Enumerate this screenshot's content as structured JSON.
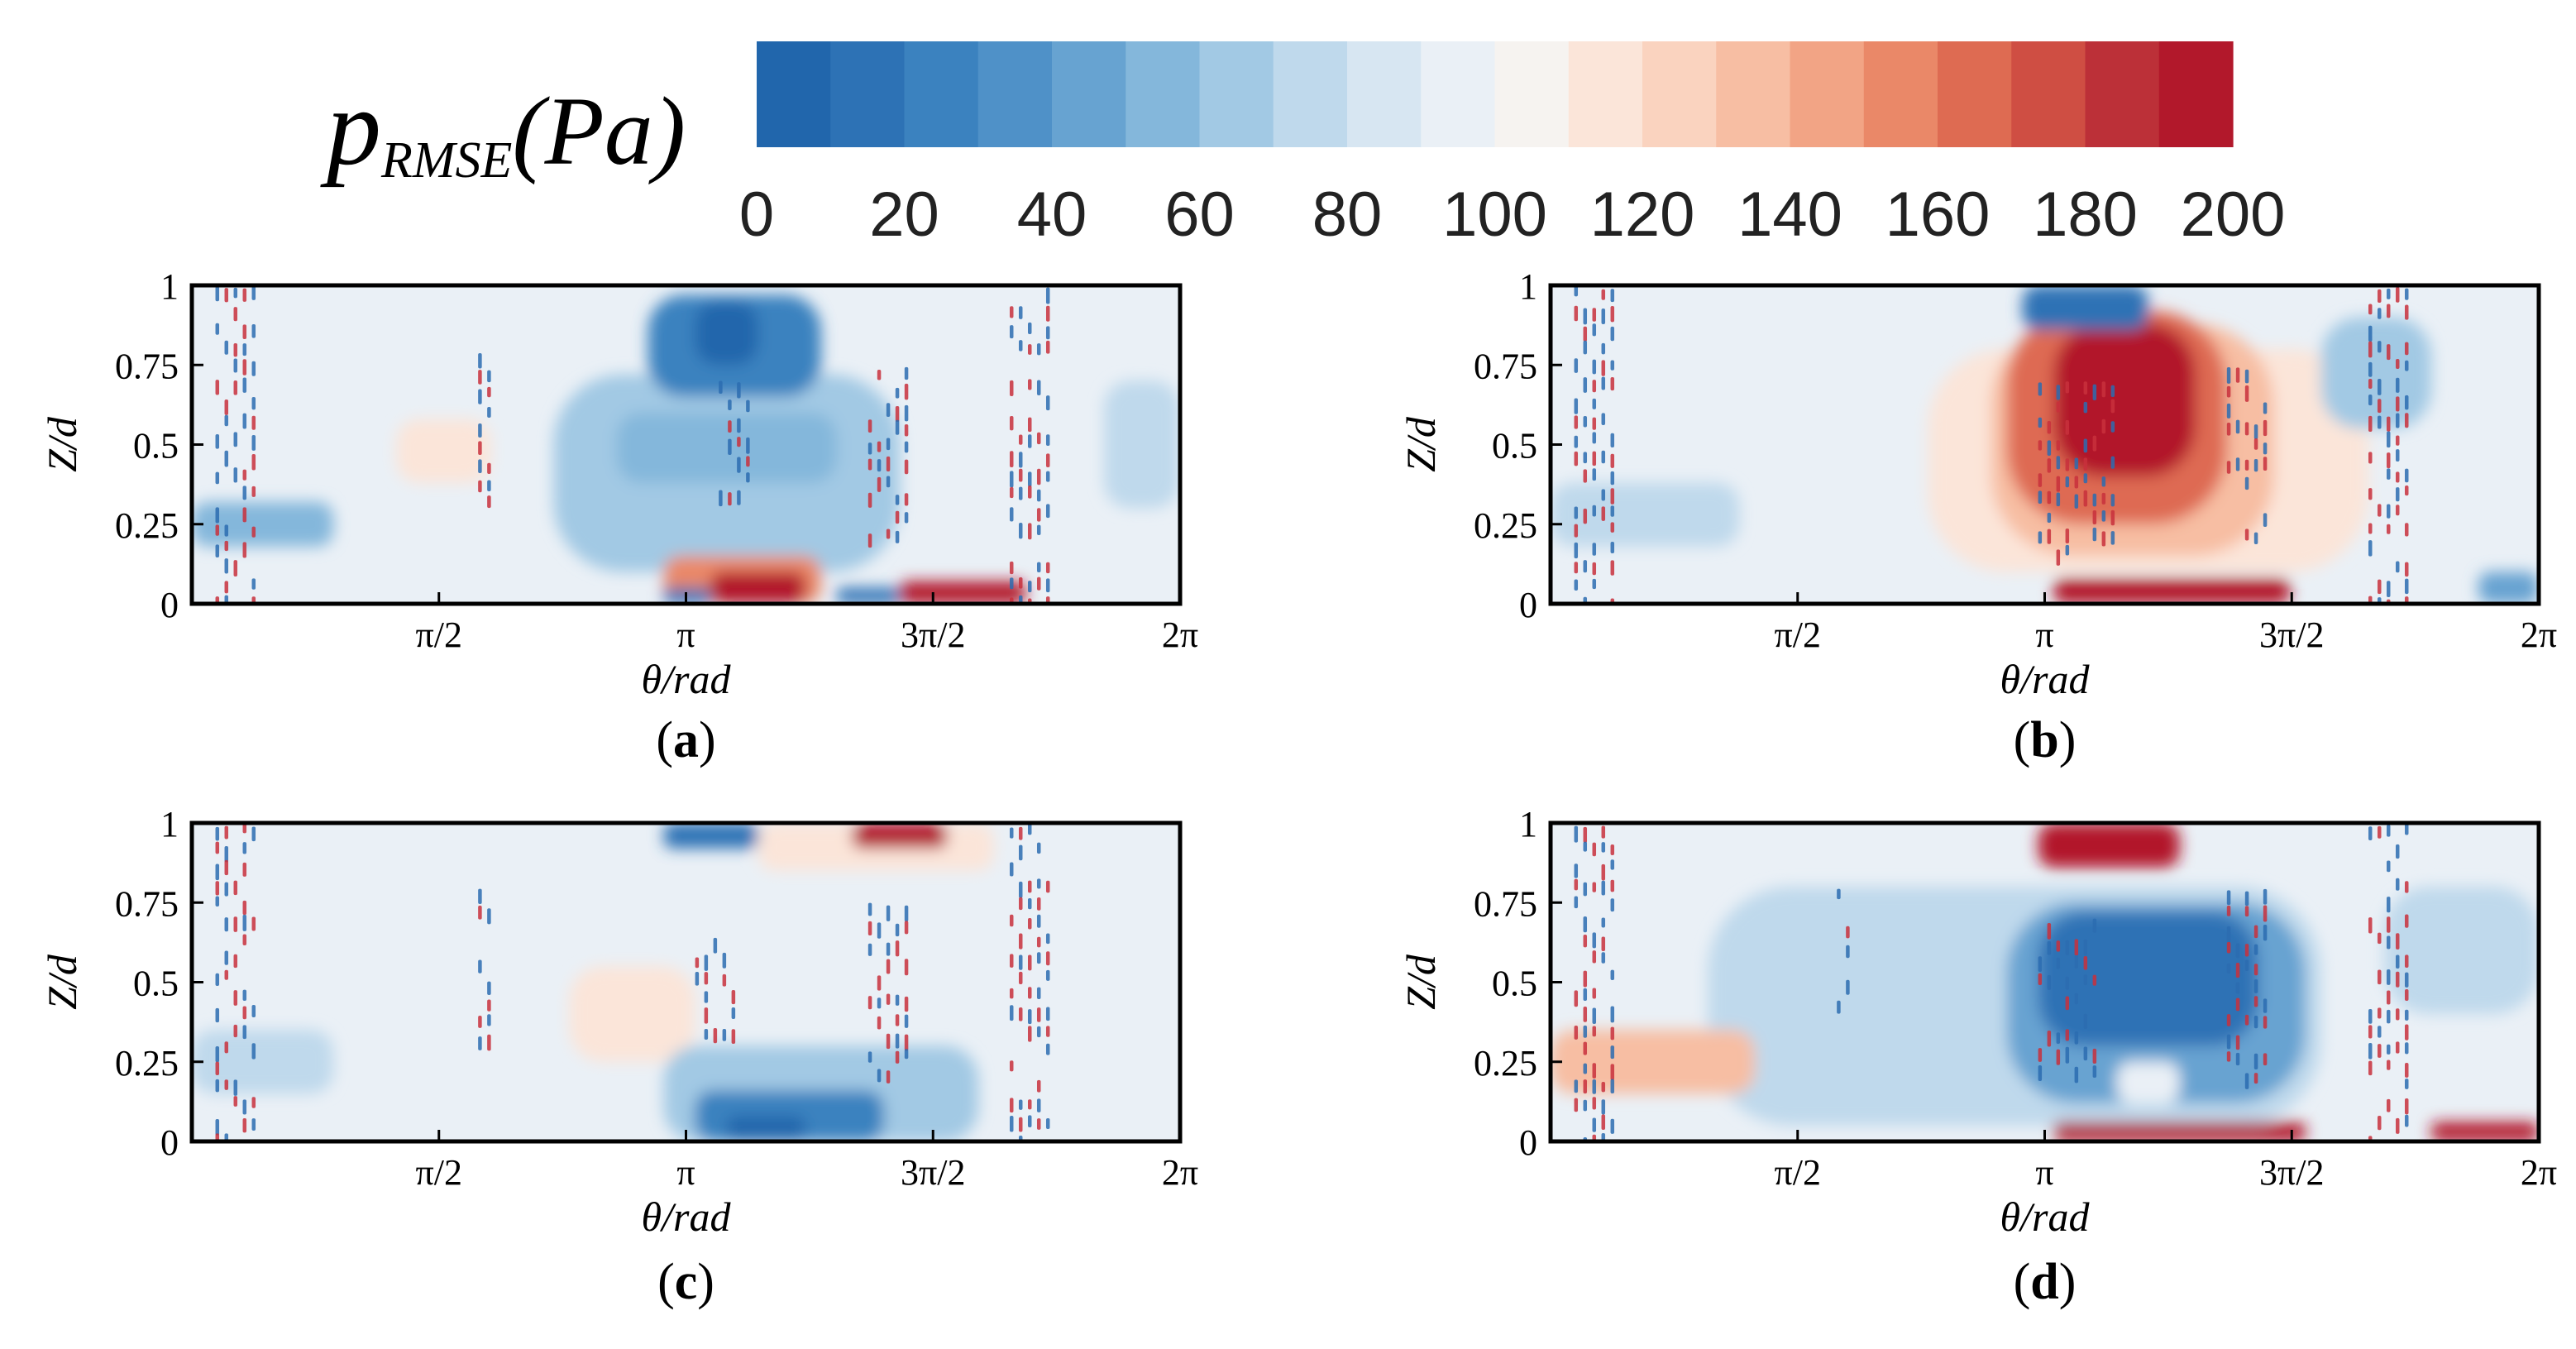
{
  "figure": {
    "colorbar": {
      "label_main": "p",
      "label_sub": "RMSE",
      "label_unit": "(Pa)",
      "min": 0,
      "max": 200,
      "ticks": [
        "0",
        "20",
        "40",
        "60",
        "80",
        "100",
        "120",
        "140",
        "160",
        "180",
        "200"
      ],
      "colors": [
        "#2166ac",
        "#2d72b5",
        "#3b82bf",
        "#4f91c8",
        "#67a3d1",
        "#84b7db",
        "#a2c9e4",
        "#bfd9ec",
        "#d7e6f2",
        "#eaf0f6",
        "#f6f3f0",
        "#fbe5d9",
        "#fad3bf",
        "#f7bea3",
        "#f2a485",
        "#ea8868",
        "#de6b52",
        "#cf4e43",
        "#bc3038",
        "#b2182b"
      ]
    },
    "panels": [
      {
        "id": "a",
        "caption_text": "a"
      },
      {
        "id": "b",
        "caption_text": "b"
      },
      {
        "id": "c",
        "caption_text": "c"
      },
      {
        "id": "d",
        "caption_text": "d"
      }
    ]
  },
  "chart_data": [
    {
      "type": "heatmap",
      "panel": "a",
      "title": "(a)",
      "xlabel": "θ/rad",
      "ylabel": "Z/d",
      "xlim": [
        0,
        6.2832
      ],
      "ylim": [
        0,
        1
      ],
      "xticks": [
        {
          "value": 1.5708,
          "label": "π/2"
        },
        {
          "value": 3.1416,
          "label": "π"
        },
        {
          "value": 4.7124,
          "label": "3π/2"
        },
        {
          "value": 6.2832,
          "label": "2π"
        }
      ],
      "yticks": [
        {
          "value": 0,
          "label": "0"
        },
        {
          "value": 0.25,
          "label": "0.25"
        },
        {
          "value": 0.5,
          "label": "0.5"
        },
        {
          "value": 0.75,
          "label": "0.75"
        },
        {
          "value": 1,
          "label": "1"
        }
      ],
      "background_value": 92,
      "regions": [
        {
          "theta": [
            2.3,
            4.5
          ],
          "z": [
            0.1,
            0.72
          ],
          "value": 65
        },
        {
          "theta": [
            2.7,
            4.1
          ],
          "z": [
            0.38,
            0.6
          ],
          "value": 55
        },
        {
          "theta": [
            2.9,
            4.0
          ],
          "z": [
            0.65,
            0.97
          ],
          "value": 20
        },
        {
          "theta": [
            3.2,
            3.6
          ],
          "z": [
            0.75,
            0.95
          ],
          "value": 8
        },
        {
          "theta": [
            1.3,
            1.9
          ],
          "z": [
            0.38,
            0.58
          ],
          "value": 112
        },
        {
          "theta": [
            3.0,
            4.0
          ],
          "z": [
            0.0,
            0.15
          ],
          "value": 150
        },
        {
          "theta": [
            3.3,
            3.9
          ],
          "z": [
            0.0,
            0.1
          ],
          "value": 195
        },
        {
          "theta": [
            4.5,
            5.3
          ],
          "z": [
            0.0,
            0.07
          ],
          "value": 190
        },
        {
          "theta": [
            3.0,
            3.3
          ],
          "z": [
            0.0,
            0.05
          ],
          "value": 15
        },
        {
          "theta": [
            4.1,
            4.5
          ],
          "z": [
            0.0,
            0.05
          ],
          "value": 15
        },
        {
          "theta": [
            0.0,
            0.9
          ],
          "z": [
            0.18,
            0.32
          ],
          "value": 55
        },
        {
          "theta": [
            5.8,
            6.28
          ],
          "z": [
            0.3,
            0.7
          ],
          "value": 72
        }
      ],
      "oscillation_bands": [
        {
          "theta": [
            0.15,
            0.42
          ],
          "z": [
            0.0,
            1.0
          ]
        },
        {
          "theta": [
            1.82,
            1.92
          ],
          "z": [
            0.3,
            0.8
          ]
        },
        {
          "theta": [
            3.35,
            3.55
          ],
          "z": [
            0.3,
            0.7
          ]
        },
        {
          "theta": [
            4.3,
            4.55
          ],
          "z": [
            0.2,
            0.75
          ]
        },
        {
          "theta": [
            5.2,
            5.45
          ],
          "z": [
            0.0,
            1.0
          ]
        }
      ]
    },
    {
      "type": "heatmap",
      "panel": "b",
      "title": "(b)",
      "xlabel": "θ/rad",
      "ylabel": "Z/d",
      "xlim": [
        0,
        6.2832
      ],
      "ylim": [
        0,
        1
      ],
      "xticks": [
        {
          "value": 1.5708,
          "label": "π/2"
        },
        {
          "value": 3.1416,
          "label": "π"
        },
        {
          "value": 4.7124,
          "label": "3π/2"
        },
        {
          "value": 6.2832,
          "label": "2π"
        }
      ],
      "yticks": [
        {
          "value": 0,
          "label": "0"
        },
        {
          "value": 0.25,
          "label": "0.25"
        },
        {
          "value": 0.5,
          "label": "0.5"
        },
        {
          "value": 0.75,
          "label": "0.75"
        },
        {
          "value": 1,
          "label": "1"
        }
      ],
      "background_value": 96,
      "regions": [
        {
          "theta": [
            2.4,
            5.2
          ],
          "z": [
            0.1,
            0.8
          ],
          "value": 112
        },
        {
          "theta": [
            2.8,
            4.6
          ],
          "z": [
            0.15,
            0.88
          ],
          "value": 135
        },
        {
          "theta": [
            2.9,
            4.3
          ],
          "z": [
            0.25,
            0.92
          ],
          "value": 160
        },
        {
          "theta": [
            3.2,
            4.1
          ],
          "z": [
            0.4,
            0.88
          ],
          "value": 195
        },
        {
          "theta": [
            3.0,
            3.8
          ],
          "z": [
            0.86,
            1.0
          ],
          "value": 15
        },
        {
          "theta": [
            3.2,
            4.7
          ],
          "z": [
            0.0,
            0.08
          ],
          "value": 195
        },
        {
          "theta": [
            0.0,
            1.2
          ],
          "z": [
            0.18,
            0.38
          ],
          "value": 70
        },
        {
          "theta": [
            4.9,
            5.6
          ],
          "z": [
            0.55,
            0.9
          ],
          "value": 60
        },
        {
          "theta": [
            5.9,
            6.28
          ],
          "z": [
            0.0,
            0.1
          ],
          "value": 40
        }
      ],
      "oscillation_bands": [
        {
          "theta": [
            0.15,
            0.42
          ],
          "z": [
            0.0,
            1.0
          ]
        },
        {
          "theta": [
            3.1,
            3.6
          ],
          "z": [
            0.15,
            0.7
          ]
        },
        {
          "theta": [
            4.3,
            4.55
          ],
          "z": [
            0.2,
            0.75
          ]
        },
        {
          "theta": [
            5.2,
            5.45
          ],
          "z": [
            0.0,
            1.0
          ]
        }
      ]
    },
    {
      "type": "heatmap",
      "panel": "c",
      "title": "(c)",
      "xlabel": "θ/rad",
      "ylabel": "Z/d",
      "xlim": [
        0,
        6.2832
      ],
      "ylim": [
        0,
        1
      ],
      "xticks": [
        {
          "value": 1.5708,
          "label": "π/2"
        },
        {
          "value": 3.1416,
          "label": "π"
        },
        {
          "value": 4.7124,
          "label": "3π/2"
        },
        {
          "value": 6.2832,
          "label": "2π"
        }
      ],
      "yticks": [
        {
          "value": 0,
          "label": "0"
        },
        {
          "value": 0.25,
          "label": "0.25"
        },
        {
          "value": 0.5,
          "label": "0.5"
        },
        {
          "value": 0.75,
          "label": "0.75"
        },
        {
          "value": 1,
          "label": "1"
        }
      ],
      "background_value": 95,
      "regions": [
        {
          "theta": [
            2.4,
            3.2
          ],
          "z": [
            0.25,
            0.55
          ],
          "value": 115
        },
        {
          "theta": [
            3.0,
            5.0
          ],
          "z": [
            0.0,
            0.3
          ],
          "value": 60
        },
        {
          "theta": [
            3.2,
            4.4
          ],
          "z": [
            0.0,
            0.16
          ],
          "value": 25
        },
        {
          "theta": [
            3.4,
            3.9
          ],
          "z": [
            0.0,
            0.08
          ],
          "value": 8
        },
        {
          "theta": [
            3.6,
            5.1
          ],
          "z": [
            0.85,
            1.0
          ],
          "value": 112
        },
        {
          "theta": [
            3.0,
            3.6
          ],
          "z": [
            0.92,
            1.0
          ],
          "value": 12
        },
        {
          "theta": [
            4.2,
            4.8
          ],
          "z": [
            0.92,
            1.0
          ],
          "value": 190
        },
        {
          "theta": [
            0.0,
            0.9
          ],
          "z": [
            0.15,
            0.35
          ],
          "value": 70
        }
      ],
      "oscillation_bands": [
        {
          "theta": [
            0.15,
            0.42
          ],
          "z": [
            0.0,
            1.0
          ]
        },
        {
          "theta": [
            1.82,
            1.92
          ],
          "z": [
            0.3,
            0.8
          ]
        },
        {
          "theta": [
            3.2,
            3.45
          ],
          "z": [
            0.35,
            0.65
          ]
        },
        {
          "theta": [
            4.3,
            4.55
          ],
          "z": [
            0.2,
            0.75
          ]
        },
        {
          "theta": [
            5.2,
            5.45
          ],
          "z": [
            0.0,
            1.0
          ]
        }
      ]
    },
    {
      "type": "heatmap",
      "panel": "d",
      "title": "(d)",
      "xlabel": "θ/rad",
      "ylabel": "Z/d",
      "xlim": [
        0,
        6.2832
      ],
      "ylim": [
        0,
        1
      ],
      "xticks": [
        {
          "value": 1.5708,
          "label": "π/2"
        },
        {
          "value": 3.1416,
          "label": "π"
        },
        {
          "value": 4.7124,
          "label": "3π/2"
        },
        {
          "value": 6.2832,
          "label": "2π"
        }
      ],
      "yticks": [
        {
          "value": 0,
          "label": "0"
        },
        {
          "value": 0.25,
          "label": "0.25"
        },
        {
          "value": 0.5,
          "label": "0.5"
        },
        {
          "value": 0.75,
          "label": "0.75"
        },
        {
          "value": 1,
          "label": "1"
        }
      ],
      "background_value": 92,
      "regions": [
        {
          "theta": [
            1.0,
            4.9
          ],
          "z": [
            0.05,
            0.8
          ],
          "value": 70
        },
        {
          "theta": [
            2.9,
            4.8
          ],
          "z": [
            0.12,
            0.75
          ],
          "value": 45
        },
        {
          "theta": [
            3.1,
            4.5
          ],
          "z": [
            0.3,
            0.72
          ],
          "value": 18
        },
        {
          "theta": [
            3.6,
            4.0
          ],
          "z": [
            0.12,
            0.25
          ],
          "value": 90
        },
        {
          "theta": [
            3.1,
            4.0
          ],
          "z": [
            0.86,
            1.0
          ],
          "value": 198
        },
        {
          "theta": [
            0.0,
            1.3
          ],
          "z": [
            0.15,
            0.35
          ],
          "value": 130
        },
        {
          "theta": [
            3.2,
            4.8
          ],
          "z": [
            0.0,
            0.06
          ],
          "value": 190
        },
        {
          "theta": [
            5.6,
            6.28
          ],
          "z": [
            0.0,
            0.06
          ],
          "value": 190
        },
        {
          "theta": [
            5.3,
            6.28
          ],
          "z": [
            0.4,
            0.8
          ],
          "value": 75
        }
      ],
      "oscillation_bands": [
        {
          "theta": [
            0.15,
            0.42
          ],
          "z": [
            0.0,
            1.0
          ]
        },
        {
          "theta": [
            1.82,
            1.92
          ],
          "z": [
            0.3,
            0.8
          ]
        },
        {
          "theta": [
            3.1,
            3.5
          ],
          "z": [
            0.2,
            0.7
          ]
        },
        {
          "theta": [
            4.3,
            4.55
          ],
          "z": [
            0.2,
            0.8
          ]
        },
        {
          "theta": [
            5.2,
            5.45
          ],
          "z": [
            0.0,
            1.0
          ]
        }
      ]
    }
  ]
}
